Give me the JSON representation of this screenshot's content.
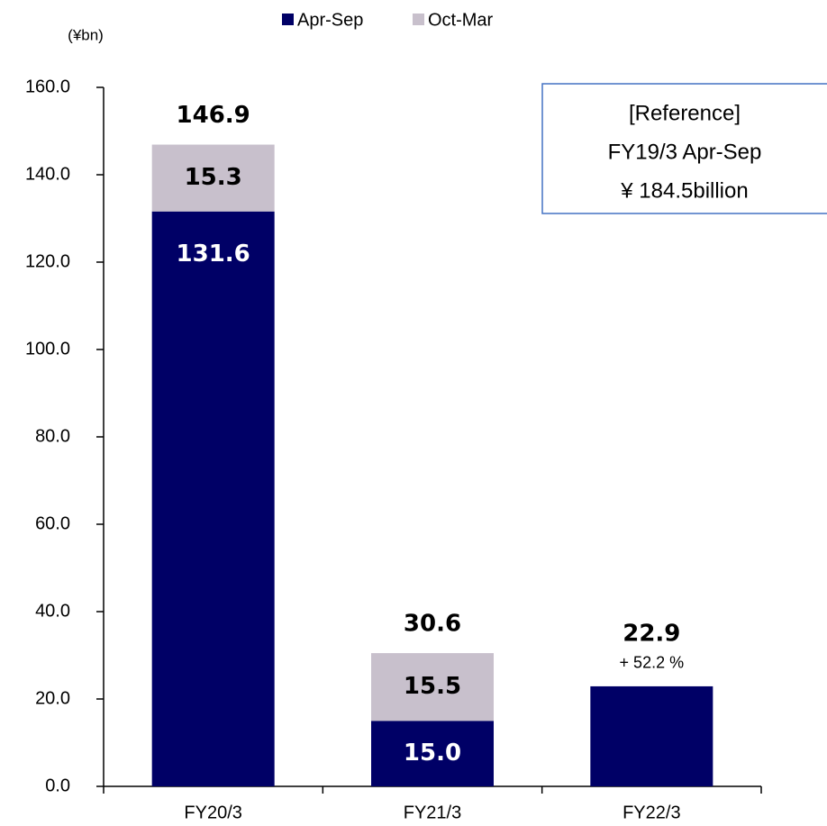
{
  "chart_data": {
    "type": "stacked_bar",
    "unit_label": "(¥bn)",
    "categories": [
      "FY20/3",
      "FY21/3",
      "FY22/3"
    ],
    "series": [
      {
        "name": "Apr-Sep",
        "color": "#000066",
        "values": [
          131.6,
          15.0,
          22.9
        ],
        "value_labels": [
          "131.6",
          "15.0",
          null
        ]
      },
      {
        "name": "Oct-Mar",
        "color": "#c8c0cc",
        "values": [
          15.3,
          15.5,
          null
        ],
        "value_labels": [
          "15.3",
          "15.5",
          null
        ]
      }
    ],
    "totals": [
      146.9,
      30.6,
      22.9
    ],
    "growth_label": "+ 52.2 %",
    "reference_box": [
      "[Reference]",
      "FY19/3 Apr-Sep",
      "¥ 184.5billion"
    ],
    "ylim": [
      0,
      160
    ],
    "yticks": [
      {
        "value": 0,
        "label": "0.0"
      },
      {
        "value": 20,
        "label": "20.0"
      },
      {
        "value": 40,
        "label": "40.0"
      },
      {
        "value": 60,
        "label": "60.0"
      },
      {
        "value": 80,
        "label": "80.0"
      },
      {
        "value": 100,
        "label": "100.0"
      },
      {
        "value": 120,
        "label": "120.0"
      },
      {
        "value": 140,
        "label": "140.0"
      },
      {
        "value": 160,
        "label": "160.0"
      }
    ],
    "grid": false
  }
}
